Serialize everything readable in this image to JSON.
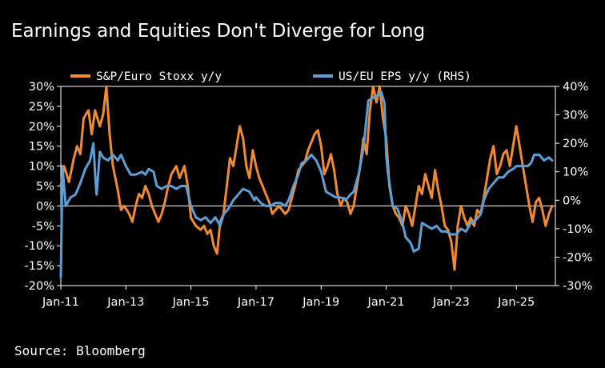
{
  "chart_data": {
    "type": "line",
    "title": "Earnings and Equities Don't Diverge for Long",
    "source": "Source: Bloomberg",
    "x_range": [
      2011.0,
      2026.2
    ],
    "x_ticks": [
      {
        "label": "Jan-11",
        "value": 2011
      },
      {
        "label": "Jan-13",
        "value": 2013
      },
      {
        "label": "Jan-15",
        "value": 2015
      },
      {
        "label": "Jan-17",
        "value": 2017
      },
      {
        "label": "Jan-19",
        "value": 2019
      },
      {
        "label": "Jan-21",
        "value": 2021
      },
      {
        "label": "Jan-23",
        "value": 2023
      },
      {
        "label": "Jan-25",
        "value": 2025
      }
    ],
    "y_left": {
      "range": [
        -20,
        30
      ],
      "ticks": [
        {
          "label": "30%",
          "value": 30
        },
        {
          "label": "25%",
          "value": 25
        },
        {
          "label": "20%",
          "value": 20
        },
        {
          "label": "15%",
          "value": 15
        },
        {
          "label": "10%",
          "value": 10
        },
        {
          "label": "5%",
          "value": 5
        },
        {
          "label": "0%",
          "value": 0
        },
        {
          "label": "-5%",
          "value": -5
        },
        {
          "label": "-10%",
          "value": -10
        },
        {
          "label": "-15%",
          "value": -15
        },
        {
          "label": "-20%",
          "value": -20
        }
      ]
    },
    "y_right": {
      "range": [
        -30,
        40
      ],
      "ticks": [
        {
          "label": "40%",
          "value": 40
        },
        {
          "label": "30%",
          "value": 30
        },
        {
          "label": "20%",
          "value": 20
        },
        {
          "label": "10%",
          "value": 10
        },
        {
          "label": "0%",
          "value": 0
        },
        {
          "label": "-10%",
          "value": -10
        },
        {
          "label": "-20%",
          "value": -20
        },
        {
          "label": "-30%",
          "value": -30
        }
      ]
    },
    "series": [
      {
        "name": "S&P/Euro Stoxx y/y",
        "axis": "left",
        "color": "#f08a30",
        "points": [
          [
            2011.0,
            5
          ],
          [
            2011.1,
            10
          ],
          [
            2011.25,
            6
          ],
          [
            2011.4,
            12
          ],
          [
            2011.5,
            15
          ],
          [
            2011.6,
            13
          ],
          [
            2011.7,
            22
          ],
          [
            2011.85,
            24
          ],
          [
            2011.95,
            18
          ],
          [
            2012.05,
            24
          ],
          [
            2012.2,
            20
          ],
          [
            2012.3,
            23
          ],
          [
            2012.4,
            30
          ],
          [
            2012.5,
            18
          ],
          [
            2012.6,
            10
          ],
          [
            2012.75,
            4
          ],
          [
            2012.85,
            -1
          ],
          [
            2012.95,
            0
          ],
          [
            2013.1,
            -2
          ],
          [
            2013.2,
            -4
          ],
          [
            2013.3,
            0
          ],
          [
            2013.4,
            3
          ],
          [
            2013.5,
            2
          ],
          [
            2013.6,
            5
          ],
          [
            2013.7,
            3
          ],
          [
            2013.8,
            0
          ],
          [
            2013.9,
            -2
          ],
          [
            2014.0,
            -4
          ],
          [
            2014.1,
            -2
          ],
          [
            2014.2,
            1
          ],
          [
            2014.3,
            5
          ],
          [
            2014.4,
            8
          ],
          [
            2014.55,
            10
          ],
          [
            2014.65,
            7
          ],
          [
            2014.8,
            10
          ],
          [
            2014.9,
            5
          ],
          [
            2015.0,
            -3
          ],
          [
            2015.15,
            -5
          ],
          [
            2015.3,
            -6
          ],
          [
            2015.4,
            -5
          ],
          [
            2015.5,
            -7
          ],
          [
            2015.6,
            -6
          ],
          [
            2015.7,
            -10
          ],
          [
            2015.8,
            -12
          ],
          [
            2015.9,
            -4
          ],
          [
            2016.0,
            -2
          ],
          [
            2016.1,
            5
          ],
          [
            2016.2,
            12
          ],
          [
            2016.3,
            10
          ],
          [
            2016.4,
            15
          ],
          [
            2016.5,
            20
          ],
          [
            2016.6,
            17
          ],
          [
            2016.7,
            10
          ],
          [
            2016.8,
            7
          ],
          [
            2016.9,
            14
          ],
          [
            2017.0,
            10
          ],
          [
            2017.1,
            7
          ],
          [
            2017.2,
            5
          ],
          [
            2017.3,
            3
          ],
          [
            2017.4,
            1
          ],
          [
            2017.5,
            -2
          ],
          [
            2017.6,
            -1
          ],
          [
            2017.7,
            0
          ],
          [
            2017.8,
            -1
          ],
          [
            2017.9,
            -2
          ],
          [
            2018.0,
            -1
          ],
          [
            2018.1,
            2
          ],
          [
            2018.2,
            5
          ],
          [
            2018.3,
            9
          ],
          [
            2018.4,
            10
          ],
          [
            2018.5,
            11
          ],
          [
            2018.6,
            14
          ],
          [
            2018.7,
            16
          ],
          [
            2018.8,
            18
          ],
          [
            2018.9,
            19
          ],
          [
            2019.0,
            15
          ],
          [
            2019.1,
            8
          ],
          [
            2019.2,
            10
          ],
          [
            2019.3,
            13
          ],
          [
            2019.4,
            9
          ],
          [
            2019.5,
            3
          ],
          [
            2019.6,
            0
          ],
          [
            2019.7,
            2
          ],
          [
            2019.8,
            1
          ],
          [
            2019.9,
            -2
          ],
          [
            2020.0,
            0
          ],
          [
            2020.1,
            5
          ],
          [
            2020.2,
            10
          ],
          [
            2020.3,
            17
          ],
          [
            2020.4,
            13
          ],
          [
            2020.5,
            24
          ],
          [
            2020.6,
            30
          ],
          [
            2020.7,
            26
          ],
          [
            2020.8,
            30
          ],
          [
            2020.9,
            22
          ],
          [
            2021.0,
            17
          ],
          [
            2021.1,
            5
          ],
          [
            2021.2,
            0
          ],
          [
            2021.3,
            -2
          ],
          [
            2021.4,
            -3
          ],
          [
            2021.5,
            -5
          ],
          [
            2021.6,
            0
          ],
          [
            2021.7,
            -2
          ],
          [
            2021.8,
            -5
          ],
          [
            2021.9,
            0
          ],
          [
            2022.0,
            5
          ],
          [
            2022.1,
            3
          ],
          [
            2022.2,
            8
          ],
          [
            2022.3,
            5
          ],
          [
            2022.4,
            2
          ],
          [
            2022.5,
            9
          ],
          [
            2022.6,
            4
          ],
          [
            2022.7,
            0
          ],
          [
            2022.8,
            -5
          ],
          [
            2022.9,
            -6
          ],
          [
            2023.0,
            -9
          ],
          [
            2023.1,
            -16
          ],
          [
            2023.2,
            -5
          ],
          [
            2023.3,
            0
          ],
          [
            2023.4,
            -3
          ],
          [
            2023.5,
            -5
          ],
          [
            2023.6,
            -3
          ],
          [
            2023.7,
            -5
          ],
          [
            2023.8,
            -1
          ],
          [
            2023.9,
            -2
          ],
          [
            2024.0,
            2
          ],
          [
            2024.1,
            7
          ],
          [
            2024.2,
            12
          ],
          [
            2024.3,
            15
          ],
          [
            2024.4,
            8
          ],
          [
            2024.5,
            10
          ],
          [
            2024.6,
            13
          ],
          [
            2024.7,
            14
          ],
          [
            2024.8,
            10
          ],
          [
            2024.9,
            15
          ],
          [
            2025.0,
            20
          ],
          [
            2025.1,
            15
          ],
          [
            2025.2,
            10
          ],
          [
            2025.3,
            5
          ],
          [
            2025.4,
            0
          ],
          [
            2025.5,
            -4
          ],
          [
            2025.6,
            1
          ],
          [
            2025.7,
            2
          ],
          [
            2025.8,
            -1
          ],
          [
            2025.9,
            -5
          ],
          [
            2026.0,
            -2
          ],
          [
            2026.1,
            0
          ]
        ]
      },
      {
        "name": "US/EU EPS y/y (RHS)",
        "axis": "right",
        "color": "#5b9fd6",
        "points": [
          [
            2011.0,
            -27
          ],
          [
            2011.05,
            12
          ],
          [
            2011.15,
            -2
          ],
          [
            2011.3,
            1
          ],
          [
            2011.45,
            2
          ],
          [
            2011.6,
            6
          ],
          [
            2011.75,
            11
          ],
          [
            2011.9,
            14
          ],
          [
            2012.0,
            20
          ],
          [
            2012.05,
            10
          ],
          [
            2012.1,
            2
          ],
          [
            2012.2,
            17
          ],
          [
            2012.3,
            15
          ],
          [
            2012.45,
            14
          ],
          [
            2012.6,
            16
          ],
          [
            2012.75,
            14
          ],
          [
            2012.85,
            16
          ],
          [
            2013.0,
            12
          ],
          [
            2013.15,
            9
          ],
          [
            2013.3,
            9
          ],
          [
            2013.5,
            10
          ],
          [
            2013.6,
            9
          ],
          [
            2013.7,
            11
          ],
          [
            2013.85,
            10
          ],
          [
            2013.95,
            5
          ],
          [
            2014.1,
            4
          ],
          [
            2014.25,
            5
          ],
          [
            2014.4,
            5
          ],
          [
            2014.55,
            4
          ],
          [
            2014.7,
            5
          ],
          [
            2014.85,
            5
          ],
          [
            2015.0,
            -2
          ],
          [
            2015.15,
            -6
          ],
          [
            2015.3,
            -7
          ],
          [
            2015.45,
            -6
          ],
          [
            2015.6,
            -8
          ],
          [
            2015.75,
            -6
          ],
          [
            2015.9,
            -9
          ],
          [
            2016.0,
            -5
          ],
          [
            2016.15,
            -3
          ],
          [
            2016.3,
            0
          ],
          [
            2016.45,
            2
          ],
          [
            2016.6,
            4
          ],
          [
            2016.8,
            3
          ],
          [
            2016.95,
            0
          ],
          [
            2017.0,
            1
          ],
          [
            2017.15,
            -1
          ],
          [
            2017.3,
            -2
          ],
          [
            2017.45,
            -2
          ],
          [
            2017.6,
            -1
          ],
          [
            2017.75,
            -1
          ],
          [
            2017.9,
            -2
          ],
          [
            2018.0,
            0
          ],
          [
            2018.15,
            5
          ],
          [
            2018.3,
            9
          ],
          [
            2018.4,
            13
          ],
          [
            2018.55,
            14
          ],
          [
            2018.7,
            16
          ],
          [
            2018.85,
            14
          ],
          [
            2019.0,
            10
          ],
          [
            2019.15,
            3
          ],
          [
            2019.3,
            2
          ],
          [
            2019.45,
            1
          ],
          [
            2019.6,
            1
          ],
          [
            2019.75,
            0
          ],
          [
            2019.9,
            2
          ],
          [
            2020.0,
            3
          ],
          [
            2020.15,
            9
          ],
          [
            2020.3,
            18
          ],
          [
            2020.45,
            35
          ],
          [
            2020.6,
            36
          ],
          [
            2020.75,
            37
          ],
          [
            2020.85,
            38
          ],
          [
            2020.95,
            34
          ],
          [
            2021.0,
            16
          ],
          [
            2021.05,
            10
          ],
          [
            2021.2,
            -2
          ],
          [
            2021.35,
            -3
          ],
          [
            2021.5,
            -8
          ],
          [
            2021.6,
            -13
          ],
          [
            2021.75,
            -15
          ],
          [
            2021.85,
            -18
          ],
          [
            2022.0,
            -17
          ],
          [
            2022.1,
            -8
          ],
          [
            2022.25,
            -9
          ],
          [
            2022.4,
            -10
          ],
          [
            2022.55,
            -9
          ],
          [
            2022.7,
            -11
          ],
          [
            2022.85,
            -11
          ],
          [
            2023.0,
            -12
          ],
          [
            2023.15,
            -12
          ],
          [
            2023.3,
            -10
          ],
          [
            2023.45,
            -11
          ],
          [
            2023.6,
            -8
          ],
          [
            2023.75,
            -7
          ],
          [
            2023.9,
            -5
          ],
          [
            2024.0,
            0
          ],
          [
            2024.15,
            4
          ],
          [
            2024.3,
            6
          ],
          [
            2024.45,
            8
          ],
          [
            2024.6,
            8
          ],
          [
            2024.75,
            10
          ],
          [
            2024.9,
            11
          ],
          [
            2025.0,
            12
          ],
          [
            2025.1,
            12
          ],
          [
            2025.25,
            12
          ],
          [
            2025.35,
            12
          ],
          [
            2025.45,
            13
          ],
          [
            2025.55,
            16
          ],
          [
            2025.7,
            16
          ],
          [
            2025.85,
            14
          ],
          [
            2026.0,
            15
          ],
          [
            2026.1,
            14
          ]
        ]
      }
    ]
  }
}
